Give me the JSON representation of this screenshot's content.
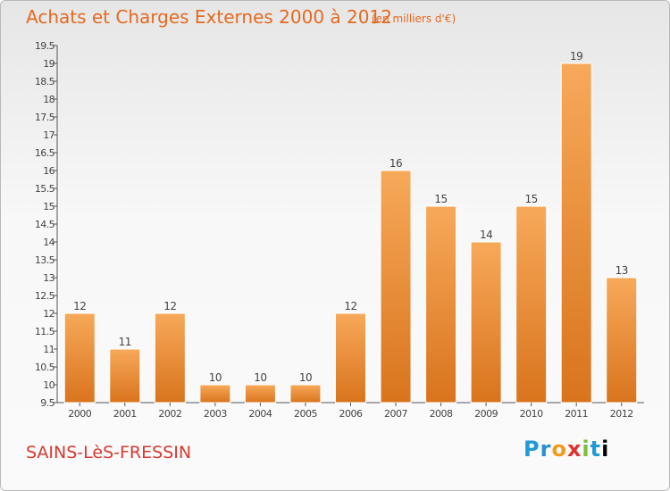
{
  "header": {
    "title": "Achats et Charges Externes 2000 à 2012",
    "unit": "(en milliers d'€)"
  },
  "footer": {
    "commune": "SAINS-LèS-FRESSIN",
    "logo": "Proxiti"
  },
  "colors": {
    "accent": "#e46a20",
    "bar_light": "#f7a95a",
    "bar_dark": "#d9741d",
    "commune": "#d83a32"
  },
  "chart_data": {
    "type": "bar",
    "title": "Achats et Charges Externes 2000 à 2012",
    "categories": [
      "2000",
      "2001",
      "2002",
      "2003",
      "2004",
      "2005",
      "2006",
      "2007",
      "2008",
      "2009",
      "2010",
      "2011",
      "2012"
    ],
    "values": [
      12,
      11,
      12,
      10,
      10,
      10,
      12,
      16,
      15,
      14,
      15,
      19,
      13
    ],
    "ylim": [
      9.5,
      19.5
    ],
    "yticks": [
      9.5,
      10,
      10.5,
      11,
      11.5,
      12,
      12.5,
      13,
      13.5,
      14,
      14.5,
      15,
      15.5,
      16,
      16.5,
      17,
      17.5,
      18,
      18.5,
      19,
      19.5
    ],
    "grid": false,
    "legend": "none"
  }
}
